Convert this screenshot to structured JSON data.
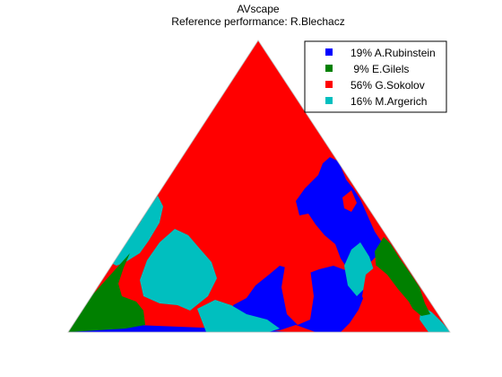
{
  "chart_data": {
    "type": "heatmap",
    "subtype": "ternary-scape",
    "title": "AVscape",
    "subtitle": "Reference performance: R.Blechacz",
    "xlabel": "",
    "ylabel": "",
    "grid": false,
    "legend_position": "top-right",
    "series": [
      {
        "name": "A.Rubinstein",
        "percent": 19,
        "label": "19% A.Rubinstein",
        "color": "#0000ff"
      },
      {
        "name": "E.Gilels",
        "percent": 9,
        "label": " 9% E.Gilels",
        "color": "#008000"
      },
      {
        "name": "G.Sokolov",
        "percent": 56,
        "label": "56% G.Sokolov",
        "color": "#ff0000"
      },
      {
        "name": "M.Argerich",
        "percent": 16,
        "label": "16% M.Argerich",
        "color": "#00bfbf"
      }
    ]
  }
}
